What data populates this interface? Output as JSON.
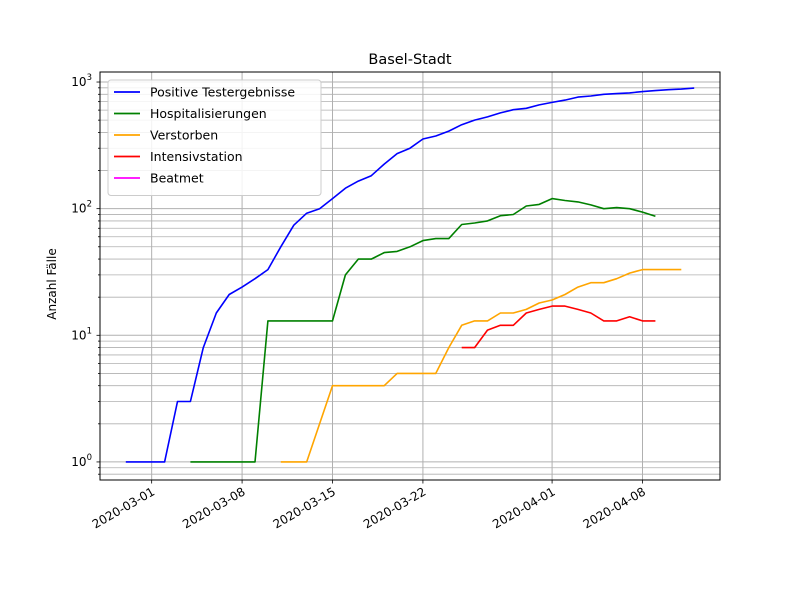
{
  "chart_data": {
    "type": "line",
    "title": "Basel-Stadt",
    "xlabel": "",
    "ylabel": "Anzahl Fälle",
    "yscale": "log",
    "ylim": [
      0.72,
      1200
    ],
    "xlim": [
      "2020-02-26",
      "2020-04-14"
    ],
    "x_ticks": [
      "2020-03-01",
      "2020-03-08",
      "2020-03-15",
      "2020-03-22",
      "2020-04-01",
      "2020-04-08"
    ],
    "y_ticks": [
      {
        "value": 1,
        "base": "10",
        "exp": "0"
      },
      {
        "value": 10,
        "base": "10",
        "exp": "1"
      },
      {
        "value": 100,
        "base": "10",
        "exp": "2"
      },
      {
        "value": 1000,
        "base": "10",
        "exp": "3"
      }
    ],
    "grid": true,
    "legend_position": "top-left",
    "series": [
      {
        "name": "Positive Testergebnisse",
        "color": "#0000ff",
        "points": [
          [
            "2020-02-28",
            1
          ],
          [
            "2020-03-01",
            1
          ],
          [
            "2020-03-02",
            1
          ],
          [
            "2020-03-03",
            3
          ],
          [
            "2020-03-04",
            3
          ],
          [
            "2020-03-05",
            8
          ],
          [
            "2020-03-06",
            15
          ],
          [
            "2020-03-07",
            21
          ],
          [
            "2020-03-08",
            24
          ],
          [
            "2020-03-09",
            28
          ],
          [
            "2020-03-10",
            33
          ],
          [
            "2020-03-11",
            50
          ],
          [
            "2020-03-12",
            74
          ],
          [
            "2020-03-13",
            92
          ],
          [
            "2020-03-14",
            100
          ],
          [
            "2020-03-15",
            120
          ],
          [
            "2020-03-16",
            145
          ],
          [
            "2020-03-17",
            165
          ],
          [
            "2020-03-18",
            182
          ],
          [
            "2020-03-19",
            225
          ],
          [
            "2020-03-20",
            272
          ],
          [
            "2020-03-21",
            300
          ],
          [
            "2020-03-22",
            355
          ],
          [
            "2020-03-23",
            375
          ],
          [
            "2020-03-24",
            410
          ],
          [
            "2020-03-25",
            460
          ],
          [
            "2020-03-26",
            500
          ],
          [
            "2020-03-27",
            530
          ],
          [
            "2020-03-28",
            570
          ],
          [
            "2020-03-29",
            605
          ],
          [
            "2020-03-30",
            620
          ],
          [
            "2020-03-31",
            660
          ],
          [
            "2020-04-01",
            690
          ],
          [
            "2020-04-02",
            720
          ],
          [
            "2020-04-03",
            760
          ],
          [
            "2020-04-04",
            775
          ],
          [
            "2020-04-05",
            800
          ],
          [
            "2020-04-06",
            810
          ],
          [
            "2020-04-07",
            820
          ],
          [
            "2020-04-08",
            840
          ],
          [
            "2020-04-09",
            855
          ],
          [
            "2020-04-10",
            870
          ],
          [
            "2020-04-11",
            880
          ],
          [
            "2020-04-12",
            895
          ]
        ]
      },
      {
        "name": "Hospitalisierungen",
        "color": "#008000",
        "points": [
          [
            "2020-03-04",
            1
          ],
          [
            "2020-03-05",
            1
          ],
          [
            "2020-03-06",
            1
          ],
          [
            "2020-03-07",
            1
          ],
          [
            "2020-03-08",
            1
          ],
          [
            "2020-03-09",
            1
          ],
          [
            "2020-03-10",
            13
          ],
          [
            "2020-03-11",
            13
          ],
          [
            "2020-03-12",
            13
          ],
          [
            "2020-03-13",
            13
          ],
          [
            "2020-03-14",
            13
          ],
          [
            "2020-03-15",
            13
          ],
          [
            "2020-03-16",
            30
          ],
          [
            "2020-03-17",
            40
          ],
          [
            "2020-03-18",
            40
          ],
          [
            "2020-03-19",
            45
          ],
          [
            "2020-03-20",
            46
          ],
          [
            "2020-03-21",
            50
          ],
          [
            "2020-03-22",
            56
          ],
          [
            "2020-03-23",
            58
          ],
          [
            "2020-03-24",
            58
          ],
          [
            "2020-03-25",
            75
          ],
          [
            "2020-03-26",
            77
          ],
          [
            "2020-03-27",
            80
          ],
          [
            "2020-03-28",
            88
          ],
          [
            "2020-03-29",
            90
          ],
          [
            "2020-03-30",
            105
          ],
          [
            "2020-03-31",
            108
          ],
          [
            "2020-04-01",
            120
          ],
          [
            "2020-04-02",
            116
          ],
          [
            "2020-04-03",
            113
          ],
          [
            "2020-04-04",
            107
          ],
          [
            "2020-04-05",
            100
          ],
          [
            "2020-04-06",
            102
          ],
          [
            "2020-04-07",
            100
          ],
          [
            "2020-04-08",
            94
          ],
          [
            "2020-04-09",
            87
          ]
        ]
      },
      {
        "name": "Verstorben",
        "color": "#ffa500",
        "points": [
          [
            "2020-03-11",
            1
          ],
          [
            "2020-03-12",
            1
          ],
          [
            "2020-03-13",
            1
          ],
          [
            "2020-03-14",
            2
          ],
          [
            "2020-03-15",
            4
          ],
          [
            "2020-03-16",
            4
          ],
          [
            "2020-03-17",
            4
          ],
          [
            "2020-03-18",
            4
          ],
          [
            "2020-03-19",
            4
          ],
          [
            "2020-03-20",
            5
          ],
          [
            "2020-03-21",
            5
          ],
          [
            "2020-03-22",
            5
          ],
          [
            "2020-03-23",
            5
          ],
          [
            "2020-03-24",
            8
          ],
          [
            "2020-03-25",
            12
          ],
          [
            "2020-03-26",
            13
          ],
          [
            "2020-03-27",
            13
          ],
          [
            "2020-03-28",
            15
          ],
          [
            "2020-03-29",
            15
          ],
          [
            "2020-03-30",
            16
          ],
          [
            "2020-03-31",
            18
          ],
          [
            "2020-04-01",
            19
          ],
          [
            "2020-04-02",
            21
          ],
          [
            "2020-04-03",
            24
          ],
          [
            "2020-04-04",
            26
          ],
          [
            "2020-04-05",
            26
          ],
          [
            "2020-04-06",
            28
          ],
          [
            "2020-04-07",
            31
          ],
          [
            "2020-04-08",
            33
          ],
          [
            "2020-04-09",
            33
          ],
          [
            "2020-04-10",
            33
          ],
          [
            "2020-04-11",
            33
          ]
        ]
      },
      {
        "name": "Intensivstation",
        "color": "#ff0000",
        "points": [
          [
            "2020-03-25",
            8
          ],
          [
            "2020-03-26",
            8
          ],
          [
            "2020-03-27",
            11
          ],
          [
            "2020-03-28",
            12
          ],
          [
            "2020-03-29",
            12
          ],
          [
            "2020-03-30",
            15
          ],
          [
            "2020-03-31",
            16
          ],
          [
            "2020-04-01",
            17
          ],
          [
            "2020-04-02",
            17
          ],
          [
            "2020-04-03",
            16
          ],
          [
            "2020-04-04",
            15
          ],
          [
            "2020-04-05",
            13
          ],
          [
            "2020-04-06",
            13
          ],
          [
            "2020-04-07",
            14
          ],
          [
            "2020-04-08",
            13
          ],
          [
            "2020-04-09",
            13
          ]
        ]
      },
      {
        "name": "Beatmet",
        "color": "#ff00ff",
        "points": []
      }
    ]
  }
}
